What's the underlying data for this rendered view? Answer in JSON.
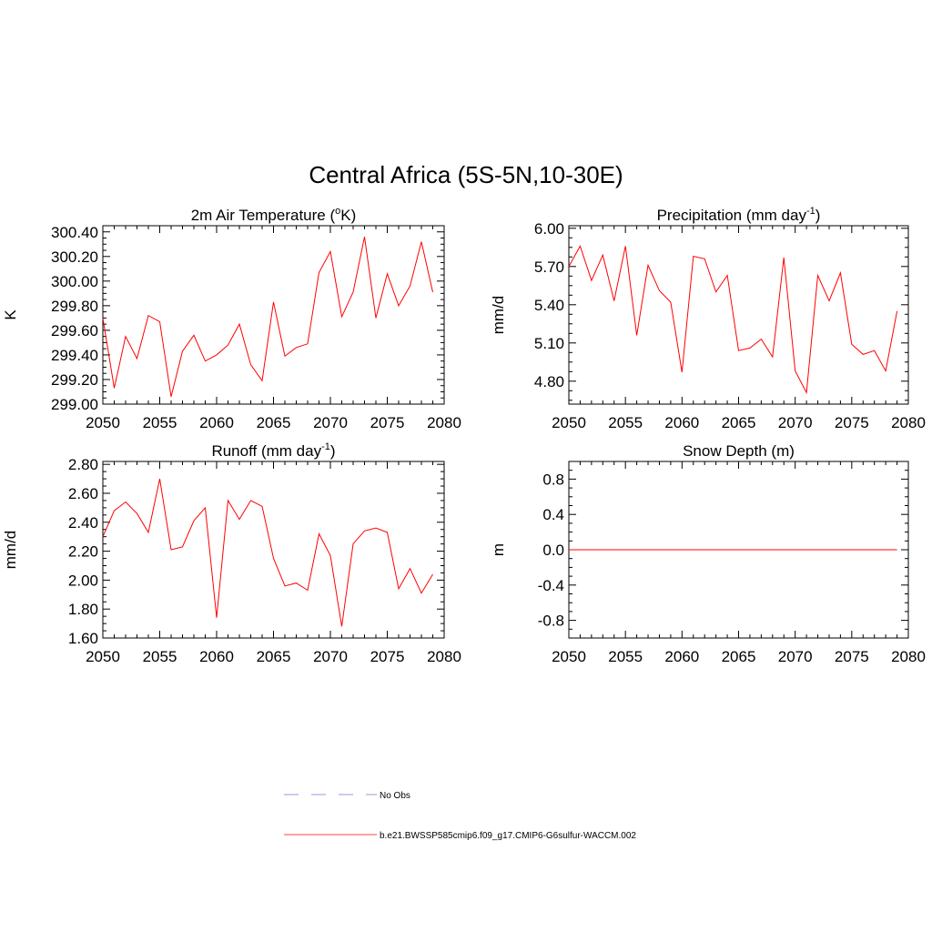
{
  "figure": {
    "title": "Central Africa (5S-5N,10-30E)"
  },
  "legend": {
    "entries": [
      {
        "label": "No Obs",
        "color": "#9999dd",
        "dash": true
      },
      {
        "label": "b.e21.BWSSP585cmip6.f09_g17.CMIP6-G6sulfur-WACCM.002",
        "color": "#ff4444",
        "dash": false
      }
    ]
  },
  "chart_data": [
    {
      "type": "line",
      "title": "2m Air Temperature (",
      "title_sup": "o",
      "title_after": "K)",
      "ylabel": "K",
      "xlim": [
        2050,
        2080
      ],
      "ylim": [
        299.0,
        300.45
      ],
      "xticks": [
        2050,
        2055,
        2060,
        2065,
        2070,
        2075,
        2080
      ],
      "yticks": [
        "299.00",
        "299.20",
        "299.40",
        "299.60",
        "299.80",
        "300.00",
        "300.20",
        "300.40"
      ],
      "series": [
        {
          "color": "#ff0000",
          "x": [
            2050,
            2051,
            2052,
            2053,
            2054,
            2055,
            2056,
            2057,
            2058,
            2059,
            2060,
            2061,
            2062,
            2063,
            2064,
            2065,
            2066,
            2067,
            2068,
            2069,
            2070,
            2071,
            2072,
            2073,
            2074,
            2075,
            2076,
            2077,
            2078,
            2079
          ],
          "y": [
            299.7,
            299.13,
            299.55,
            299.37,
            299.72,
            299.67,
            299.06,
            299.43,
            299.56,
            299.35,
            299.4,
            299.48,
            299.65,
            299.32,
            299.19,
            299.83,
            299.39,
            299.46,
            299.49,
            300.07,
            300.24,
            299.71,
            299.91,
            300.36,
            299.7,
            300.06,
            299.8,
            299.96,
            300.32,
            299.91
          ]
        }
      ]
    },
    {
      "type": "line",
      "title": "Precipitation (mm day",
      "title_sup": "-1",
      "title_after": ")",
      "ylabel": "mm/d",
      "xlim": [
        2050,
        2080
      ],
      "ylim": [
        4.62,
        6.02
      ],
      "xticks": [
        2050,
        2055,
        2060,
        2065,
        2070,
        2075,
        2080
      ],
      "yticks": [
        "4.80",
        "5.10",
        "5.40",
        "5.70",
        "6.00"
      ],
      "series": [
        {
          "color": "#ff0000",
          "x": [
            2050,
            2051,
            2052,
            2053,
            2054,
            2055,
            2056,
            2057,
            2058,
            2059,
            2060,
            2061,
            2062,
            2063,
            2064,
            2065,
            2066,
            2067,
            2068,
            2069,
            2070,
            2071,
            2072,
            2073,
            2074,
            2075,
            2076,
            2077,
            2078,
            2079
          ],
          "y": [
            5.7,
            5.86,
            5.59,
            5.79,
            5.43,
            5.86,
            5.16,
            5.71,
            5.51,
            5.42,
            4.87,
            5.78,
            5.76,
            5.5,
            5.63,
            5.04,
            5.06,
            5.13,
            4.99,
            5.77,
            4.88,
            4.71,
            5.63,
            5.43,
            5.65,
            5.09,
            5.01,
            5.04,
            4.88,
            5.35
          ]
        }
      ]
    },
    {
      "type": "line",
      "title": "Runoff (mm day",
      "title_sup": "-1",
      "title_after": ")",
      "ylabel": "mm/d",
      "xlim": [
        2050,
        2080
      ],
      "ylim": [
        1.6,
        2.82
      ],
      "xticks": [
        2050,
        2055,
        2060,
        2065,
        2070,
        2075,
        2080
      ],
      "yticks": [
        "1.60",
        "1.80",
        "2.00",
        "2.20",
        "2.40",
        "2.60",
        "2.80"
      ],
      "series": [
        {
          "color": "#ff0000",
          "x": [
            2050,
            2051,
            2052,
            2053,
            2054,
            2055,
            2056,
            2057,
            2058,
            2059,
            2060,
            2061,
            2062,
            2063,
            2064,
            2065,
            2066,
            2067,
            2068,
            2069,
            2070,
            2071,
            2072,
            2073,
            2074,
            2075,
            2076,
            2077,
            2078,
            2079
          ],
          "y": [
            2.3,
            2.48,
            2.54,
            2.46,
            2.33,
            2.7,
            2.21,
            2.23,
            2.41,
            2.5,
            1.74,
            2.55,
            2.42,
            2.55,
            2.51,
            2.15,
            1.96,
            1.98,
            1.93,
            2.32,
            2.17,
            1.68,
            2.25,
            2.34,
            2.36,
            2.33,
            1.94,
            2.08,
            1.91,
            2.04
          ]
        }
      ]
    },
    {
      "type": "line",
      "title": "Snow Depth (m)",
      "title_sup": "",
      "title_after": "",
      "ylabel": "m",
      "xlim": [
        2050,
        2080
      ],
      "ylim": [
        -1.0,
        1.0
      ],
      "xticks": [
        2050,
        2055,
        2060,
        2065,
        2070,
        2075,
        2080
      ],
      "yticks": [
        "-0.8",
        "-0.4",
        "0.0",
        "0.4",
        "0.8"
      ],
      "series": [
        {
          "color": "#ff0000",
          "x": [
            2050,
            2079
          ],
          "y": [
            0.0,
            0.0
          ]
        }
      ]
    }
  ]
}
